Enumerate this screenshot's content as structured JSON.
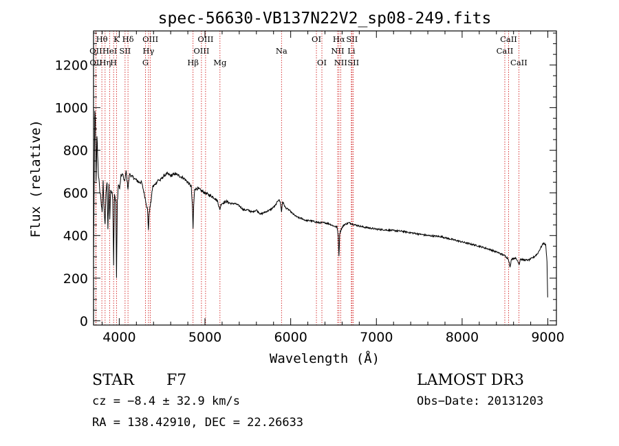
{
  "chart_data": {
    "type": "line",
    "title": "spec-56630-VB137N22V2_sp08-249.fits",
    "xlabel": "Wavelength (Å)",
    "ylabel": "Flux (relative)",
    "xlim": [
      3700,
      9100
    ],
    "ylim": [
      -20,
      1360
    ],
    "xticks": [
      4000,
      5000,
      6000,
      7000,
      8000,
      9000
    ],
    "yticks": [
      0,
      200,
      400,
      600,
      800,
      1000,
      1200
    ],
    "grid": false,
    "spectrum_anchors": [
      [
        3700,
        300
      ],
      [
        3715,
        980
      ],
      [
        3722,
        950
      ],
      [
        3730,
        650
      ],
      [
        3740,
        870
      ],
      [
        3755,
        700
      ],
      [
        3770,
        620
      ],
      [
        3785,
        580
      ],
      [
        3800,
        500
      ],
      [
        3812,
        650
      ],
      [
        3825,
        520
      ],
      [
        3835,
        440
      ],
      [
        3845,
        610
      ],
      [
        3858,
        640
      ],
      [
        3868,
        420
      ],
      [
        3880,
        640
      ],
      [
        3889,
        470
      ],
      [
        3900,
        620
      ],
      [
        3912,
        600
      ],
      [
        3925,
        580
      ],
      [
        3934,
        270
      ],
      [
        3945,
        600
      ],
      [
        3960,
        560
      ],
      [
        3968,
        200
      ],
      [
        3978,
        560
      ],
      [
        3990,
        640
      ],
      [
        4005,
        620
      ],
      [
        4020,
        680
      ],
      [
        4040,
        690
      ],
      [
        4060,
        650
      ],
      [
        4080,
        700
      ],
      [
        4102,
        620
      ],
      [
        4120,
        690
      ],
      [
        4140,
        680
      ],
      [
        4170,
        670
      ],
      [
        4200,
        660
      ],
      [
        4230,
        650
      ],
      [
        4260,
        650
      ],
      [
        4290,
        600
      ],
      [
        4310,
        560
      ],
      [
        4330,
        520
      ],
      [
        4340,
        430
      ],
      [
        4350,
        510
      ],
      [
        4370,
        560
      ],
      [
        4390,
        630
      ],
      [
        4420,
        640
      ],
      [
        4450,
        660
      ],
      [
        4480,
        660
      ],
      [
        4520,
        680
      ],
      [
        4560,
        690
      ],
      [
        4600,
        680
      ],
      [
        4650,
        690
      ],
      [
        4700,
        680
      ],
      [
        4750,
        670
      ],
      [
        4800,
        650
      ],
      [
        4840,
        630
      ],
      [
        4855,
        520
      ],
      [
        4861,
        430
      ],
      [
        4868,
        540
      ],
      [
        4880,
        620
      ],
      [
        4920,
        620
      ],
      [
        4960,
        610
      ],
      [
        5000,
        600
      ],
      [
        5050,
        590
      ],
      [
        5100,
        580
      ],
      [
        5150,
        560
      ],
      [
        5172,
        520
      ],
      [
        5190,
        550
      ],
      [
        5250,
        560
      ],
      [
        5300,
        550
      ],
      [
        5350,
        550
      ],
      [
        5400,
        540
      ],
      [
        5450,
        520
      ],
      [
        5500,
        520
      ],
      [
        5550,
        510
      ],
      [
        5600,
        520
      ],
      [
        5650,
        500
      ],
      [
        5700,
        510
      ],
      [
        5760,
        520
      ],
      [
        5820,
        540
      ],
      [
        5860,
        570
      ],
      [
        5880,
        555
      ],
      [
        5893,
        510
      ],
      [
        5905,
        560
      ],
      [
        5940,
        530
      ],
      [
        5980,
        520
      ],
      [
        6030,
        500
      ],
      [
        6080,
        485
      ],
      [
        6130,
        480
      ],
      [
        6180,
        470
      ],
      [
        6230,
        470
      ],
      [
        6280,
        465
      ],
      [
        6330,
        460
      ],
      [
        6400,
        460
      ],
      [
        6450,
        455
      ],
      [
        6500,
        445
      ],
      [
        6540,
        440
      ],
      [
        6555,
        400
      ],
      [
        6563,
        300
      ],
      [
        6572,
        410
      ],
      [
        6590,
        430
      ],
      [
        6620,
        450
      ],
      [
        6680,
        460
      ],
      [
        6750,
        450
      ],
      [
        6850,
        440
      ],
      [
        7000,
        430
      ],
      [
        7150,
        425
      ],
      [
        7300,
        420
      ],
      [
        7450,
        410
      ],
      [
        7600,
        400
      ],
      [
        7750,
        395
      ],
      [
        7900,
        380
      ],
      [
        8050,
        365
      ],
      [
        8200,
        350
      ],
      [
        8320,
        335
      ],
      [
        8420,
        320
      ],
      [
        8500,
        305
      ],
      [
        8540,
        290
      ],
      [
        8560,
        250
      ],
      [
        8575,
        290
      ],
      [
        8620,
        295
      ],
      [
        8650,
        280
      ],
      [
        8665,
        265
      ],
      [
        8680,
        290
      ],
      [
        8720,
        285
      ],
      [
        8780,
        285
      ],
      [
        8840,
        300
      ],
      [
        8880,
        315
      ],
      [
        8920,
        345
      ],
      [
        8950,
        365
      ],
      [
        8975,
        355
      ],
      [
        8990,
        280
      ],
      [
        8998,
        110
      ]
    ],
    "line_markers": [
      {
        "name": "CaII H",
        "label": "H",
        "wavelength": 3934,
        "row": 2
      },
      {
        "name": "CaII K",
        "label": "K",
        "wavelength": 3968,
        "row": 0
      },
      {
        "name": "OII",
        "label": "OII",
        "wavelength": 3727,
        "row": 1
      },
      {
        "name": "OII",
        "label": "OII",
        "wavelength": 3729,
        "row": 2
      },
      {
        "name": "H-eta",
        "label": "Hη",
        "wavelength": 3835,
        "row": 2
      },
      {
        "name": "H-theta",
        "label": "Hθ",
        "wavelength": 3797,
        "row": 0
      },
      {
        "name": "HeI",
        "label": "HeI",
        "wavelength": 3889,
        "row": 1
      },
      {
        "name": "SII",
        "label": "SII",
        "wavelength": 4068,
        "row": 1
      },
      {
        "name": "H-delta",
        "label": "Hδ",
        "wavelength": 4102,
        "row": 0
      },
      {
        "name": "G band",
        "label": "G",
        "wavelength": 4306,
        "row": 2
      },
      {
        "name": "OIII",
        "label": "OIII",
        "wavelength": 4363,
        "row": 0
      },
      {
        "name": "H-gamma",
        "label": "Hγ",
        "wavelength": 4341,
        "row": 1
      },
      {
        "name": "H-beta",
        "label": "Hβ",
        "wavelength": 4861,
        "row": 2
      },
      {
        "name": "OIII",
        "label": "OIII",
        "wavelength": 4959,
        "row": 1
      },
      {
        "name": "OIII",
        "label": "OIII",
        "wavelength": 5007,
        "row": 0
      },
      {
        "name": "Mg",
        "label": "Mg",
        "wavelength": 5175,
        "row": 2
      },
      {
        "name": "Na",
        "label": "Na",
        "wavelength": 5893,
        "row": 1
      },
      {
        "name": "OI",
        "label": "OI",
        "wavelength": 6300,
        "row": 0
      },
      {
        "name": "OI",
        "label": "OI",
        "wavelength": 6364,
        "row": 2
      },
      {
        "name": "NII",
        "label": "NII",
        "wavelength": 6548,
        "row": 1
      },
      {
        "name": "H-alpha",
        "label": "Hα",
        "wavelength": 6563,
        "row": 0
      },
      {
        "name": "NII",
        "label": "NII",
        "wavelength": 6583,
        "row": 2
      },
      {
        "name": "Li",
        "label": "Li",
        "wavelength": 6708,
        "row": 1
      },
      {
        "name": "SII",
        "label": "SII",
        "wavelength": 6716,
        "row": 0
      },
      {
        "name": "SII",
        "label": "SII",
        "wavelength": 6731,
        "row": 2
      },
      {
        "name": "CaII",
        "label": "CaII",
        "wavelength": 8498,
        "row": 1
      },
      {
        "name": "CaII",
        "label": "CaII",
        "wavelength": 8542,
        "row": 0
      },
      {
        "name": "CaII",
        "label": "CaII",
        "wavelength": 8662,
        "row": 2
      }
    ]
  },
  "info": {
    "object_class": "STAR",
    "subclass": "F7",
    "survey": "LAMOST DR3",
    "cz": "cz = −8.4 ± 32.9 km/s",
    "obs_date": "Obs−Date: 20131203",
    "radec": "RA = 138.42910, DEC =  22.26633"
  },
  "colors": {
    "spectrum": "#000000",
    "marker_line": "#cc0000",
    "axis": "#000000"
  }
}
